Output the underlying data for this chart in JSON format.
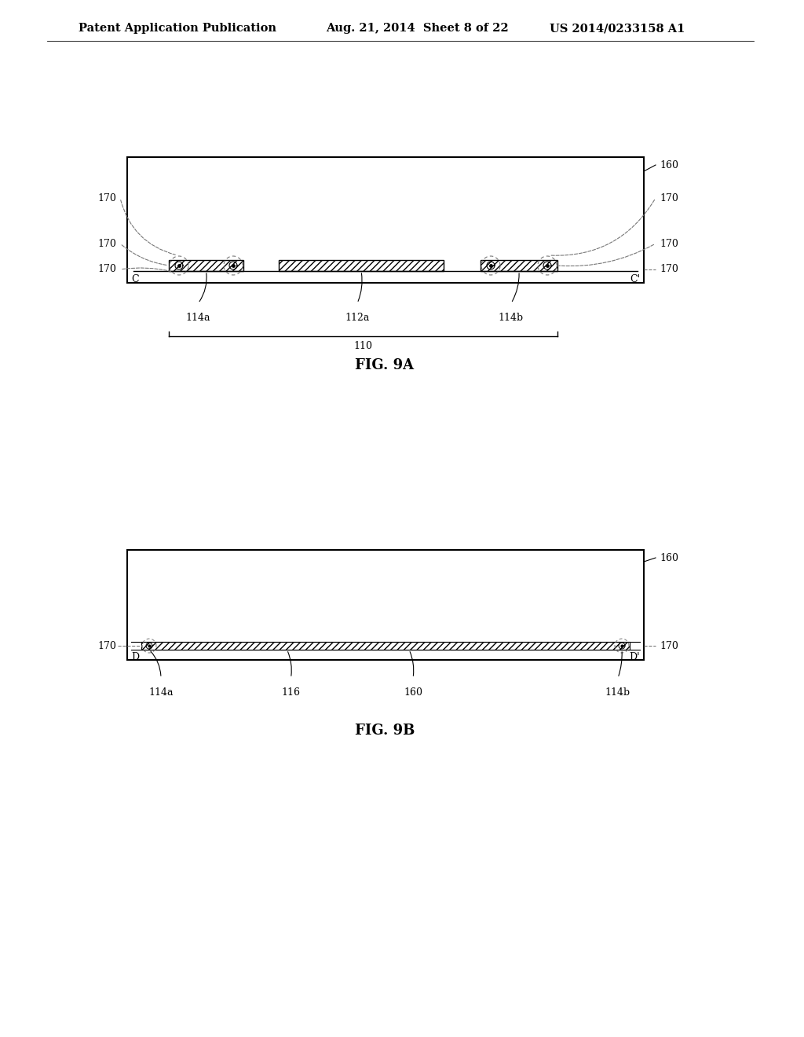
{
  "bg_color": "#ffffff",
  "header_left": "Patent Application Publication",
  "header_mid": "Aug. 21, 2014  Sheet 8 of 22",
  "header_right": "US 2014/0233158 A1",
  "header_fontsize": 10.5,
  "fig9a_title": "FIG. 9A",
  "fig9b_title": "FIG. 9B",
  "line_color": "#000000",
  "hatch_color": "#000000",
  "dashed_color": "#777777"
}
